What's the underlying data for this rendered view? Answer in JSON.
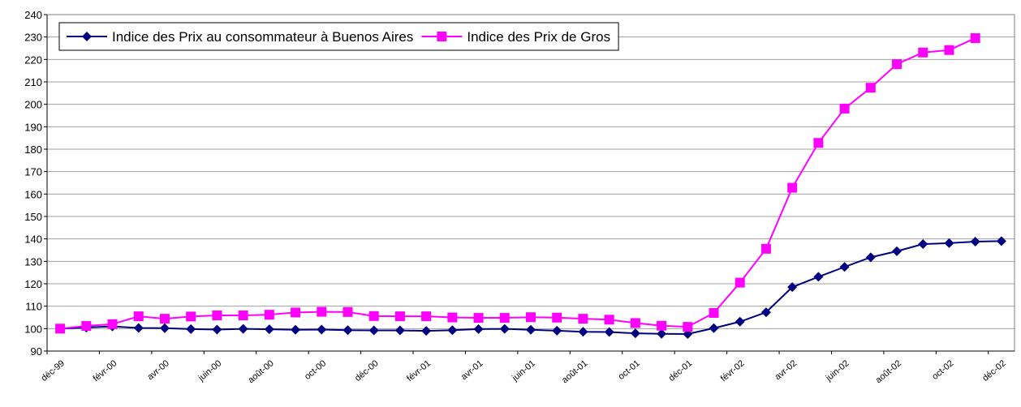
{
  "chart_data": {
    "type": "line",
    "categories": [
      "déc-99",
      null,
      "févr-00",
      null,
      "avr-00",
      null,
      "juin-00",
      null,
      "août-00",
      null,
      "oct-00",
      null,
      "déc-00",
      null,
      "févr-01",
      null,
      "avr-01",
      null,
      "juin-01",
      null,
      "août-01",
      null,
      "oct-01",
      null,
      "déc-01",
      null,
      "févr-02",
      null,
      "avr-02",
      null,
      "juin-02",
      null,
      "août-02",
      null,
      "oct-02",
      null,
      "déc-02"
    ],
    "series": [
      {
        "name": "Indice des Prix au consommateur à Buenos Aires",
        "color": "#000080",
        "marker": "diamond",
        "values": [
          100,
          100.5,
          101,
          100.3,
          100.2,
          99.8,
          99.6,
          99.9,
          99.7,
          99.5,
          99.6,
          99.3,
          99.2,
          99.2,
          99.0,
          99.3,
          99.8,
          99.9,
          99.5,
          99.1,
          98.6,
          98.5,
          97.9,
          97.7,
          97.6,
          100.2,
          103.1,
          107.3,
          118.5,
          123.1,
          127.5,
          131.8,
          134.5,
          137.7,
          138.1,
          138.8,
          139.0
        ]
      },
      {
        "name": "Indice des Prix de Gros",
        "color": "#ff00ff",
        "marker": "square",
        "values": [
          100,
          101.2,
          102,
          105.5,
          104.4,
          105.4,
          105.9,
          105.9,
          106.2,
          107.2,
          107.5,
          107.4,
          105.6,
          105.5,
          105.5,
          105.0,
          104.8,
          104.8,
          105.1,
          104.9,
          104.4,
          104.0,
          102.5,
          101.3,
          100.8,
          107.0,
          120.5,
          135.6,
          162.8,
          182.8,
          198.1,
          207.4,
          217.9,
          223.1,
          224.2,
          229.5,
          null
        ]
      }
    ],
    "ylim": [
      90,
      240
    ],
    "yticks": [
      90,
      100,
      110,
      120,
      130,
      140,
      150,
      160,
      170,
      180,
      190,
      200,
      210,
      220,
      230,
      240
    ],
    "grid": true,
    "legend": "top-left"
  }
}
